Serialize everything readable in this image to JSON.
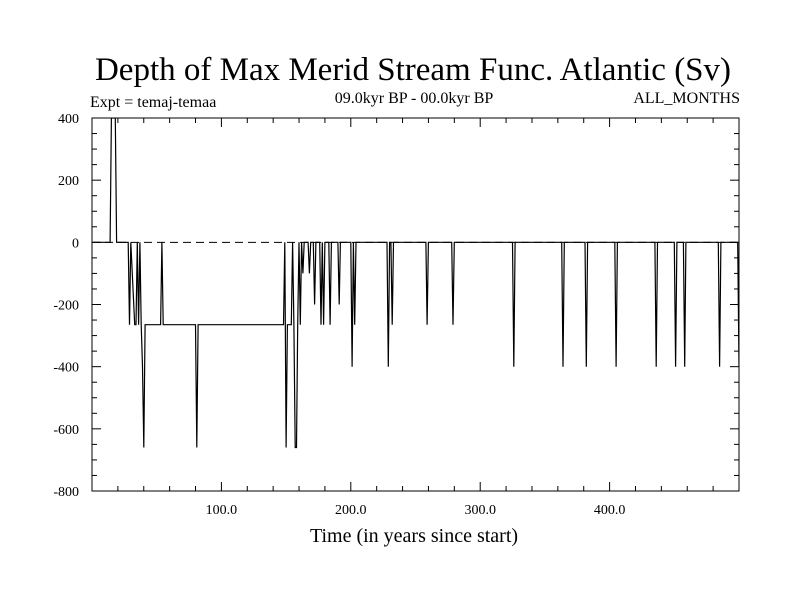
{
  "chart_data": {
    "type": "line",
    "title": "Depth of Max Merid Stream Func. Atlantic (Sv)",
    "subtitle_left": "Expt = temaj-temaa",
    "subtitle_center": "09.0kyr BP - 00.0kyr BP",
    "subtitle_right": "ALL_MONTHS",
    "xlabel": "Time (in years since start)",
    "ylabel": "",
    "xlim": [
      0,
      500
    ],
    "ylim": [
      -800,
      400
    ],
    "x_ticks": [
      100,
      200,
      300,
      400
    ],
    "x_tick_labels": [
      "100.0",
      "200.0",
      "300.0",
      "400.0"
    ],
    "y_ticks": [
      400,
      200,
      0,
      -200,
      -400,
      -600,
      -800
    ],
    "y_tick_labels": [
      "400",
      "200",
      "0",
      "-200",
      "-400",
      "-600",
      "-800"
    ],
    "zero_line": "dashed",
    "grid": false,
    "series": [
      {
        "name": "temaj-temaa",
        "points": [
          [
            1,
            0
          ],
          [
            14,
            0
          ],
          [
            15,
            400
          ],
          [
            16,
            400
          ],
          [
            17,
            400
          ],
          [
            18,
            400
          ],
          [
            19,
            0
          ],
          [
            28,
            0
          ],
          [
            29,
            -265
          ],
          [
            30,
            0
          ],
          [
            33,
            -265
          ],
          [
            34,
            -265
          ],
          [
            35,
            0
          ],
          [
            36,
            -265
          ],
          [
            37,
            0
          ],
          [
            38,
            -265
          ],
          [
            39,
            -400
          ],
          [
            40,
            -660
          ],
          [
            41,
            -265
          ],
          [
            44,
            -265
          ],
          [
            53,
            -265
          ],
          [
            54,
            0
          ],
          [
            55,
            -265
          ],
          [
            80,
            -265
          ],
          [
            81,
            -660
          ],
          [
            82,
            -265
          ],
          [
            148,
            -265
          ],
          [
            149,
            0
          ],
          [
            150,
            -660
          ],
          [
            151,
            -265
          ],
          [
            154,
            -265
          ],
          [
            155,
            0
          ],
          [
            156,
            -265
          ],
          [
            157,
            -660
          ],
          [
            158,
            -660
          ],
          [
            159,
            -265
          ],
          [
            160,
            0
          ],
          [
            161,
            -265
          ],
          [
            162,
            0
          ],
          [
            163,
            -100
          ],
          [
            164,
            0
          ],
          [
            167,
            0
          ],
          [
            168,
            -100
          ],
          [
            169,
            0
          ],
          [
            171,
            0
          ],
          [
            172,
            -200
          ],
          [
            173,
            0
          ],
          [
            176,
            0
          ],
          [
            177,
            -265
          ],
          [
            178,
            0
          ],
          [
            179,
            -265
          ],
          [
            180,
            0
          ],
          [
            183,
            0
          ],
          [
            184,
            -265
          ],
          [
            185,
            0
          ],
          [
            190,
            0
          ],
          [
            191,
            -200
          ],
          [
            192,
            0
          ],
          [
            200,
            0
          ],
          [
            201,
            -400
          ],
          [
            202,
            0
          ],
          [
            203,
            -265
          ],
          [
            204,
            0
          ],
          [
            228,
            0
          ],
          [
            229,
            -400
          ],
          [
            230,
            0
          ],
          [
            231,
            0
          ],
          [
            232,
            -265
          ],
          [
            233,
            0
          ],
          [
            258,
            0
          ],
          [
            259,
            -265
          ],
          [
            260,
            0
          ],
          [
            278,
            0
          ],
          [
            279,
            -265
          ],
          [
            280,
            0
          ],
          [
            325,
            0
          ],
          [
            326,
            -400
          ],
          [
            327,
            0
          ],
          [
            363,
            0
          ],
          [
            364,
            -400
          ],
          [
            365,
            0
          ],
          [
            381,
            0
          ],
          [
            382,
            -400
          ],
          [
            383,
            0
          ],
          [
            404,
            0
          ],
          [
            405,
            -400
          ],
          [
            406,
            0
          ],
          [
            435,
            0
          ],
          [
            436,
            -400
          ],
          [
            437,
            0
          ],
          [
            450,
            0
          ],
          [
            451,
            -400
          ],
          [
            452,
            0
          ],
          [
            457,
            0
          ],
          [
            458,
            -400
          ],
          [
            459,
            0
          ],
          [
            484,
            0
          ],
          [
            485,
            -400
          ],
          [
            486,
            0
          ],
          [
            499,
            0
          ],
          [
            500,
            -400
          ]
        ]
      }
    ]
  }
}
